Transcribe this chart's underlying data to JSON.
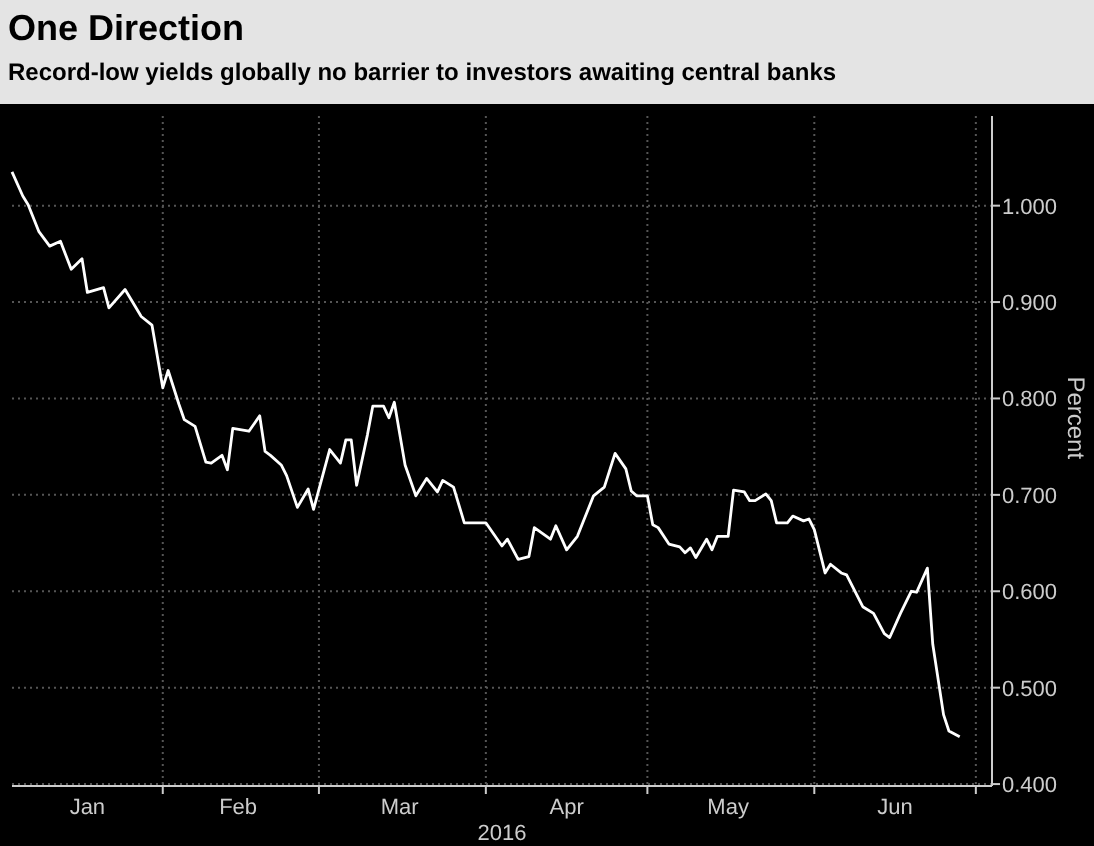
{
  "chart_data": {
    "type": "line",
    "title": "One Direction",
    "subtitle": "Record-low yields globally no barrier to investors awaiting central banks",
    "xlabel": "2016",
    "ylabel": "Percent",
    "x": [
      "2016-01-04",
      "2016-01-06",
      "2016-01-07",
      "2016-01-09",
      "2016-01-11",
      "2016-01-13",
      "2016-01-15",
      "2016-01-17",
      "2016-01-18",
      "2016-01-21",
      "2016-01-22",
      "2016-01-25",
      "2016-01-28",
      "2016-01-30",
      "2016-02-01",
      "2016-02-02",
      "2016-02-04",
      "2016-02-05",
      "2016-02-07",
      "2016-02-09",
      "2016-02-10",
      "2016-02-12",
      "2016-02-13",
      "2016-02-14",
      "2016-02-17",
      "2016-02-19",
      "2016-02-20",
      "2016-02-21",
      "2016-02-23",
      "2016-02-24",
      "2016-02-26",
      "2016-02-28",
      "2016-02-29",
      "2016-03-03",
      "2016-03-05",
      "2016-03-06",
      "2016-03-07",
      "2016-03-08",
      "2016-03-10",
      "2016-03-11",
      "2016-03-13",
      "2016-03-14",
      "2016-03-15",
      "2016-03-17",
      "2016-03-19",
      "2016-03-21",
      "2016-03-23",
      "2016-03-24",
      "2016-03-26",
      "2016-03-28",
      "2016-04-01",
      "2016-04-04",
      "2016-04-05",
      "2016-04-07",
      "2016-04-09",
      "2016-04-10",
      "2016-04-13",
      "2016-04-14",
      "2016-04-16",
      "2016-04-18",
      "2016-04-19",
      "2016-04-21",
      "2016-04-23",
      "2016-04-25",
      "2016-04-27",
      "2016-04-28",
      "2016-04-29",
      "2016-05-01",
      "2016-05-02",
      "2016-05-03",
      "2016-05-05",
      "2016-05-07",
      "2016-05-08",
      "2016-05-09",
      "2016-05-10",
      "2016-05-12",
      "2016-05-13",
      "2016-05-14",
      "2016-05-16",
      "2016-05-17",
      "2016-05-19",
      "2016-05-20",
      "2016-05-21",
      "2016-05-23",
      "2016-05-24",
      "2016-05-25",
      "2016-05-27",
      "2016-05-28",
      "2016-05-30",
      "2016-05-31",
      "2016-06-01",
      "2016-06-03",
      "2016-06-04",
      "2016-06-06",
      "2016-06-07",
      "2016-06-10",
      "2016-06-12",
      "2016-06-14",
      "2016-06-15",
      "2016-06-17",
      "2016-06-19",
      "2016-06-20",
      "2016-06-22",
      "2016-06-23",
      "2016-06-25",
      "2016-06-26",
      "2016-06-28"
    ],
    "series": [
      {
        "color": "#ffffff",
        "values": [
          1.035,
          1.01,
          1.001,
          0.973,
          0.958,
          0.963,
          0.934,
          0.945,
          0.91,
          0.915,
          0.894,
          0.913,
          0.885,
          0.876,
          0.811,
          0.829,
          0.794,
          0.778,
          0.771,
          0.734,
          0.733,
          0.741,
          0.726,
          0.769,
          0.766,
          0.782,
          0.745,
          0.741,
          0.731,
          0.72,
          0.687,
          0.706,
          0.685,
          0.747,
          0.733,
          0.757,
          0.757,
          0.71,
          0.762,
          0.792,
          0.792,
          0.78,
          0.796,
          0.731,
          0.699,
          0.717,
          0.703,
          0.715,
          0.708,
          0.671,
          0.671,
          0.647,
          0.654,
          0.633,
          0.636,
          0.666,
          0.654,
          0.668,
          0.643,
          0.657,
          0.671,
          0.699,
          0.708,
          0.743,
          0.727,
          0.704,
          0.699,
          0.699,
          0.669,
          0.666,
          0.649,
          0.646,
          0.64,
          0.645,
          0.635,
          0.654,
          0.643,
          0.657,
          0.657,
          0.705,
          0.703,
          0.694,
          0.694,
          0.701,
          0.694,
          0.671,
          0.671,
          0.678,
          0.673,
          0.675,
          0.664,
          0.619,
          0.628,
          0.619,
          0.617,
          0.584,
          0.577,
          0.556,
          0.552,
          0.577,
          0.6,
          0.599,
          0.624,
          0.545,
          0.472,
          0.455,
          0.449
        ]
      }
    ],
    "xlim": [
      "2016-01-04",
      "2016-07-04"
    ],
    "xticks": [
      {
        "value": "2016-02-01",
        "label": null
      },
      {
        "value": "2016-03-01",
        "label": null
      },
      {
        "value": "2016-04-01",
        "label": null
      },
      {
        "value": "2016-05-01",
        "label": null
      },
      {
        "value": "2016-06-01",
        "label": null
      },
      {
        "value": "2016-07-01",
        "label": null
      },
      {
        "value": "2016-01-18",
        "label": "Jan"
      },
      {
        "value": "2016-02-15",
        "label": "Feb"
      },
      {
        "value": "2016-03-16",
        "label": "Mar"
      },
      {
        "value": "2016-04-16",
        "label": "Apr"
      },
      {
        "value": "2016-05-16",
        "label": "May"
      },
      {
        "value": "2016-06-16",
        "label": "Jun"
      }
    ],
    "ylim": [
      0.398,
      1.093
    ],
    "yticks": [
      {
        "value": 0.4,
        "label": "0.400"
      },
      {
        "value": 0.5,
        "label": "0.500"
      },
      {
        "value": 0.6,
        "label": "0.600"
      },
      {
        "value": 0.7,
        "label": "0.700"
      },
      {
        "value": 0.8,
        "label": "0.800"
      },
      {
        "value": 0.9,
        "label": "0.900"
      },
      {
        "value": 1,
        "label": "1.000"
      }
    ],
    "grid": true,
    "line_style": "solid",
    "marker": "none"
  }
}
